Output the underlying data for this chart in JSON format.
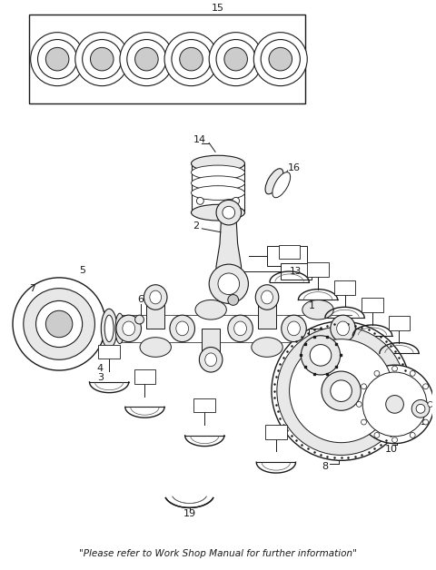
{
  "footer": "\"Please refer to Work Shop Manual for further information\"",
  "bg_color": "#ffffff",
  "fig_width": 4.8,
  "fig_height": 6.28,
  "dpi": 100
}
